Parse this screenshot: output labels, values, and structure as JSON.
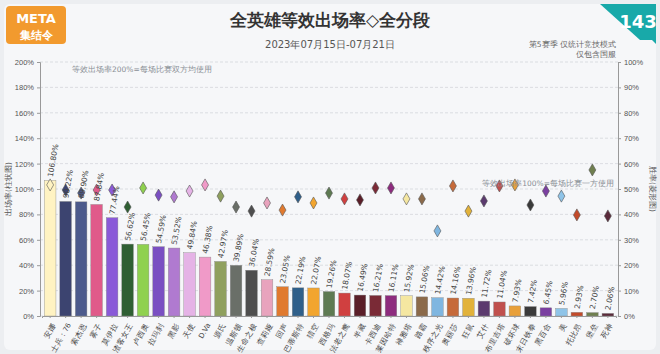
{
  "chart_data": {
    "type": "bar",
    "title": "全英雄等效出场率◇全分段",
    "subtitle": "2023年07月15日-07月21日",
    "brand": [
      "META",
      "集结令"
    ],
    "issue": "143",
    "notes": [
      "第5赛季 仅统计竞技模式",
      "仅包含国服"
    ],
    "annotations": [
      "等效出场率200%=每场比赛双方均使用",
      "等效出场率100%=每场比赛一方使用"
    ],
    "y_label": "出场率(柱状图)",
    "y2_label": "胜率(菱形图)",
    "categories": [
      "安娜",
      "士兵：76",
      "索杰恩",
      "雾子",
      "莫伊拉",
      "渣客女王",
      "卢西奥",
      "拉玛刹",
      "黑影",
      "天使",
      "D.Va",
      "源氏",
      "温斯顿",
      "生命之梭",
      "查莉娅",
      "回声",
      "巴蒂斯特",
      "猎空",
      "西格玛",
      "法老之鹰",
      "半藏",
      "卡西迪",
      "莱因哈特",
      "禅雅塔",
      "路霸",
      "秩序之光",
      "奥丽莎",
      "狂鼠",
      "艾什",
      "布里吉塔",
      "破坏球",
      "末日铁拳",
      "黑百合",
      "美",
      "托比昂",
      "堡垒",
      "死神"
    ],
    "series": [
      {
        "type": "bar",
        "data_labels": true,
        "colors": [
          "#fff3c2",
          "#3c4470",
          "#4c5a8c",
          "#e05a8a",
          "#8a5ad8",
          "#2f5f33",
          "#8fd14f",
          "#7a4fc2",
          "#b07ad0",
          "#e5b3e6",
          "#f09ac8",
          "#8fa05e",
          "#6a6f68",
          "#4e4e4e",
          "#e8a3bd",
          "#e07a2f",
          "#2f5f8a",
          "#f2a52f",
          "#5e7a52",
          "#d04040",
          "#5a1e28",
          "#7a2a36",
          "#8d2b7e",
          "#f5e7a1",
          "#8b6a4a",
          "#7fb6e0",
          "#c66a3a",
          "#e2b23a",
          "#5b3a6e",
          "#c0504d",
          "#e8a03a",
          "#3a3a3a",
          "#7a3fa0",
          "#8fc4e8",
          "#c24a2a",
          "#6f7f4f",
          "#5a2a3a"
        ],
        "values": [
          106.8,
          90.22,
          89.9,
          87.84,
          77.44,
          56.62,
          56.45,
          54.59,
          53.52,
          49.84,
          46.38,
          42.97,
          39.89,
          36.04,
          28.59,
          23.05,
          22.19,
          22.07,
          19.26,
          18.07,
          16.49,
          16.21,
          16.11,
          15.92,
          15.06,
          14.42,
          14.16,
          13.96,
          11.72,
          11.04,
          7.93,
          7.42,
          6.45,
          5.96,
          2.93,
          2.7,
          2.06
        ],
        "value_labels": [
          "106.80%",
          "90.22%",
          "89.90%",
          "87.84%",
          "77.44%",
          "56.62%",
          "56.45%",
          "54.59%",
          "53.52%",
          "49.84%",
          "46.38%",
          "42.97%",
          "39.89%",
          "36.04%",
          "28.59%",
          "23.05%",
          "22.19%",
          "22.07%",
          "19.26%",
          "18.07%",
          "16.49%",
          "16.21%",
          "16.11%",
          "15.92%",
          "15.06%",
          "14.42%",
          "14.16%",
          "13.96%",
          "11.72%",
          "11.04%",
          "7.93%",
          "7.42%",
          "6.45%",
          "5.96%",
          "2.93%",
          "2.70%",
          "2.06%"
        ]
      },
      {
        "type": "scatter",
        "marker": "diamond",
        "axis": "y2",
        "colors": [
          "#fff3c2",
          "#3c4470",
          "#4c5a8c",
          "#e05a8a",
          "#8a5ad8",
          "#2f5f33",
          "#8fd14f",
          "#7a4fc2",
          "#b07ad0",
          "#e5b3e6",
          "#f09ac8",
          "#8fa05e",
          "#6a6f68",
          "#4e4e4e",
          "#e8a3bd",
          "#e07a2f",
          "#2f5f8a",
          "#f2a52f",
          "#5e7a52",
          "#d04040",
          "#5a1e28",
          "#7a2a36",
          "#8d2b7e",
          "#f5e7a1",
          "#8b6a4a",
          "#7fb6e0",
          "#c66a3a",
          "#e2b23a",
          "#5b3a6e",
          "#c0504d",
          "#e8a03a",
          "#3a3a3a",
          "#7a3fa0",
          "#8fc4e8",
          "#c24a2a",
          "#6f7f4f",
          "#5a2a3a"
        ],
        "values": [
          51.6,
          49.6,
          48.4,
          49.6,
          49.6,
          42.9,
          50.4,
          47.6,
          46.9,
          49.2,
          51.6,
          47.2,
          42.9,
          41.3,
          44.5,
          41.7,
          46.9,
          44.5,
          48.4,
          46.1,
          45.7,
          50.4,
          50.4,
          46.1,
          46.1,
          33.5,
          51.2,
          41.3,
          45.3,
          51.2,
          51.6,
          43.7,
          49.2,
          47.2,
          39.8,
          57.5,
          39.4
        ]
      }
    ],
    "ylim": [
      0,
      200
    ],
    "yticks": [
      {
        "value": 0,
        "label": "0%"
      },
      {
        "value": 20,
        "label": "20%"
      },
      {
        "value": 40,
        "label": "40%"
      },
      {
        "value": 60,
        "label": "60%"
      },
      {
        "value": 80,
        "label": "80%"
      },
      {
        "value": 100,
        "label": "100%"
      },
      {
        "value": 120,
        "label": "120%"
      },
      {
        "value": 140,
        "label": "140%"
      },
      {
        "value": 160,
        "label": "160%"
      },
      {
        "value": 180,
        "label": "180%"
      },
      {
        "value": 200,
        "label": "200%"
      }
    ],
    "y2lim": [
      0,
      100
    ],
    "y2ticks": [
      {
        "value": 0,
        "label": "0%"
      },
      {
        "value": 10,
        "label": "10%"
      },
      {
        "value": 20,
        "label": "20%"
      },
      {
        "value": 30,
        "label": "30%"
      },
      {
        "value": 40,
        "label": "40%"
      },
      {
        "value": 50,
        "label": "50%"
      },
      {
        "value": 60,
        "label": "60%"
      },
      {
        "value": 70,
        "label": "70%"
      },
      {
        "value": 80,
        "label": "80%"
      },
      {
        "value": 90,
        "label": "90%"
      },
      {
        "value": 100,
        "label": "100%"
      }
    ],
    "grid": true
  }
}
